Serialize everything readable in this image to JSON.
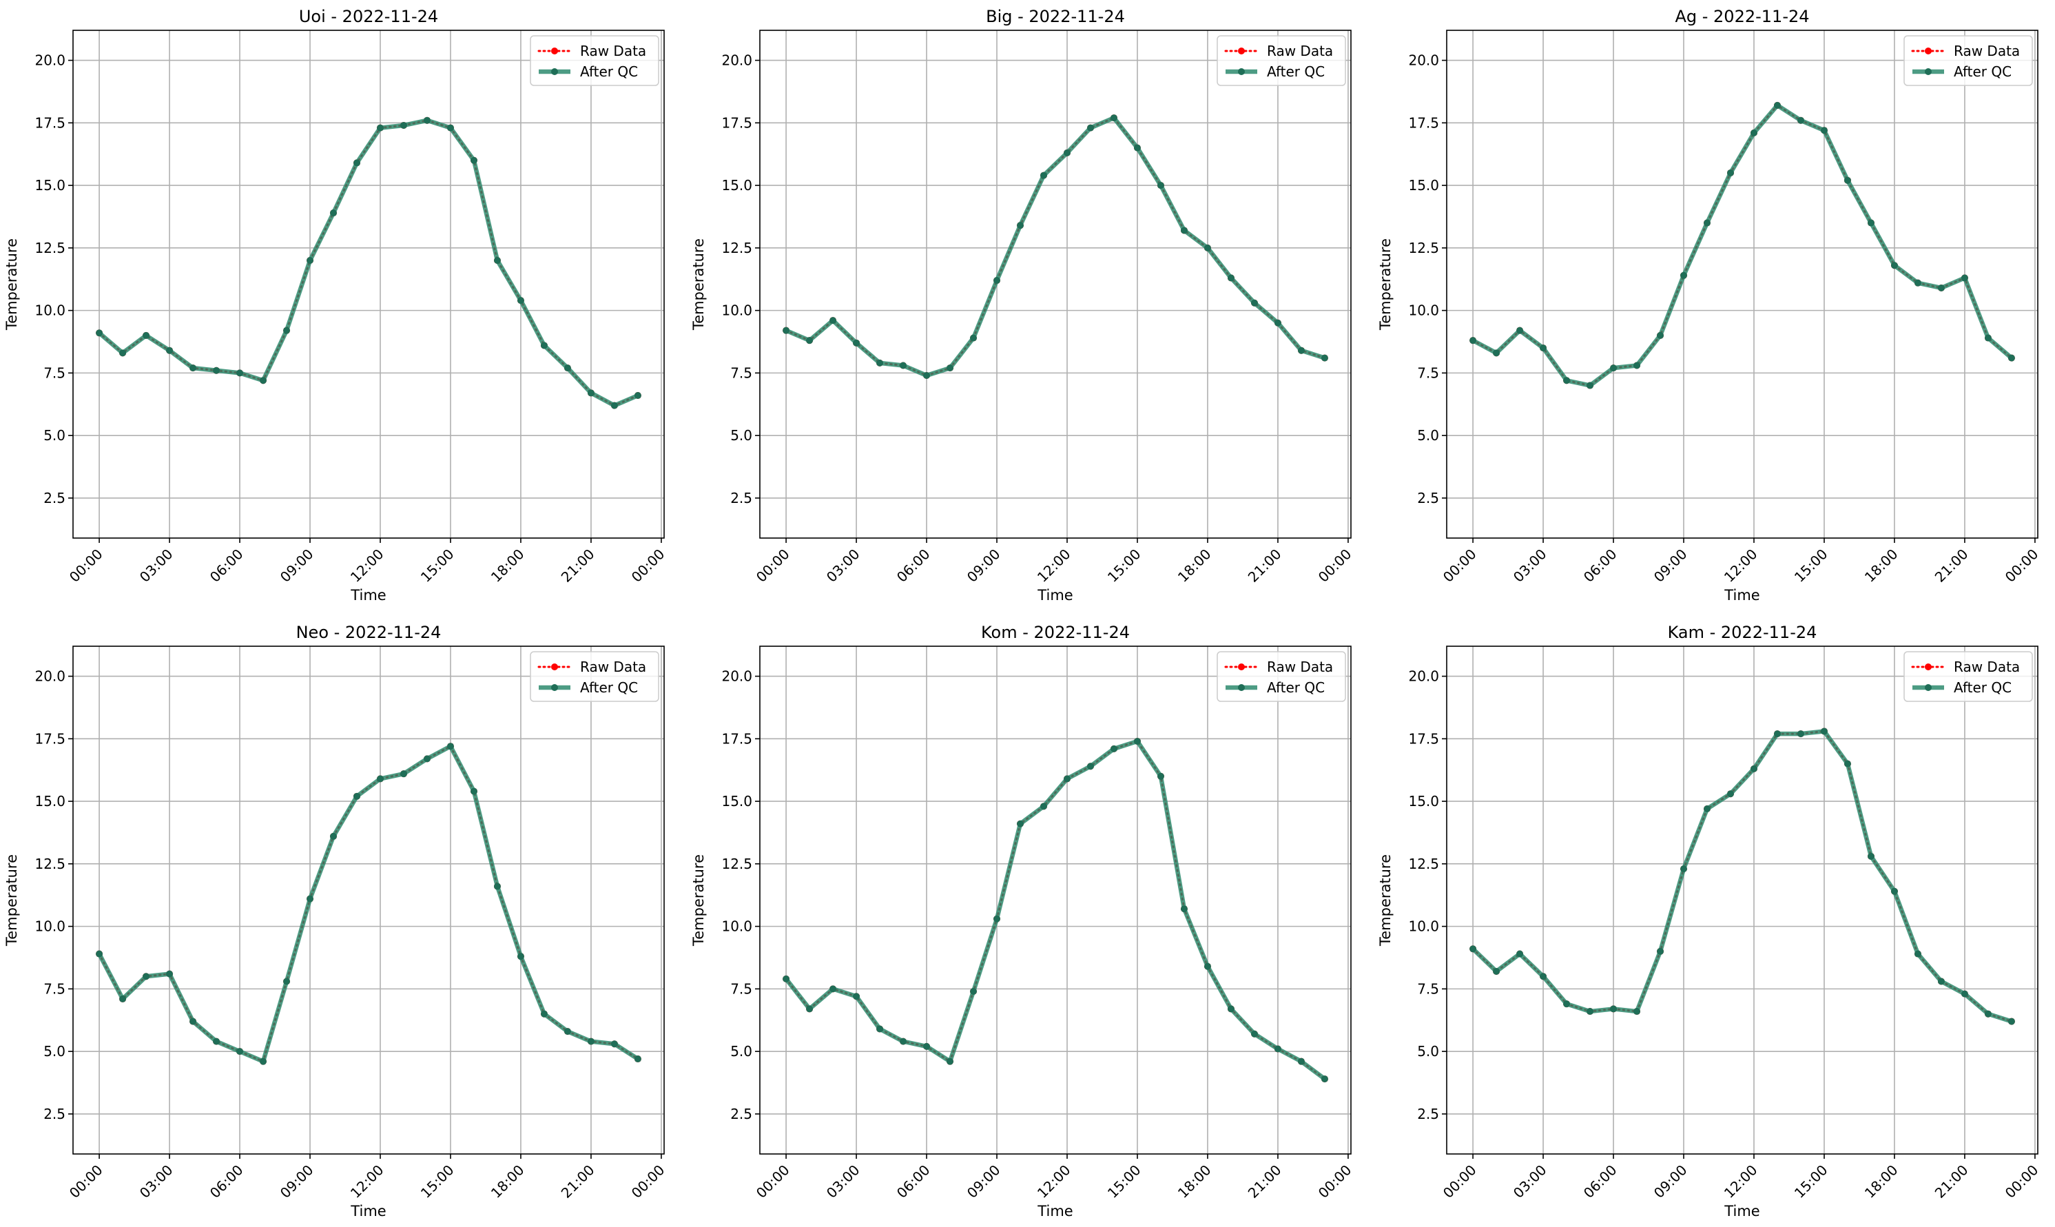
{
  "chart_data": [
    {
      "type": "line",
      "title": "Uoi - 2022-11-24",
      "xlabel": "Time",
      "ylabel": "Temperature",
      "xticks": [
        "00:00",
        "03:00",
        "06:00",
        "09:00",
        "12:00",
        "15:00",
        "18:00",
        "21:00",
        "00:00"
      ],
      "yticks": [
        "2.5",
        "5.0",
        "7.5",
        "10.0",
        "12.5",
        "15.0",
        "17.5",
        "20.0"
      ],
      "x_hours": [
        0,
        1,
        2,
        3,
        4,
        5,
        6,
        7,
        8,
        9,
        10,
        11,
        12,
        13,
        14,
        15,
        16,
        17,
        18,
        19,
        20,
        21,
        22,
        23
      ],
      "ylim": [
        0.9,
        21.2
      ],
      "grid": true,
      "legend_position": "upper right",
      "series": [
        {
          "name": "Raw Data",
          "color": "#ff0000",
          "style": "dotted",
          "marker": "circle",
          "values": [
            9.1,
            8.3,
            9.0,
            8.4,
            7.7,
            7.6,
            7.5,
            7.2,
            9.2,
            12.0,
            13.9,
            15.9,
            17.3,
            17.4,
            17.6,
            17.3,
            16.0,
            12.0,
            10.4,
            8.6,
            7.7,
            6.7,
            6.2,
            6.6
          ]
        },
        {
          "name": "After QC",
          "color": "#2e8b6e",
          "style": "solid",
          "marker": "circle",
          "values": [
            9.1,
            8.3,
            9.0,
            8.4,
            7.7,
            7.6,
            7.5,
            7.2,
            9.2,
            12.0,
            13.9,
            15.9,
            17.3,
            17.4,
            17.6,
            17.3,
            16.0,
            12.0,
            10.4,
            8.6,
            7.7,
            6.7,
            6.2,
            6.6
          ]
        }
      ]
    },
    {
      "type": "line",
      "title": "Big - 2022-11-24",
      "xlabel": "Time",
      "ylabel": "Temperature",
      "xticks": [
        "00:00",
        "03:00",
        "06:00",
        "09:00",
        "12:00",
        "15:00",
        "18:00",
        "21:00",
        "00:00"
      ],
      "yticks": [
        "2.5",
        "5.0",
        "7.5",
        "10.0",
        "12.5",
        "15.0",
        "17.5",
        "20.0"
      ],
      "x_hours": [
        0,
        1,
        2,
        3,
        4,
        5,
        6,
        7,
        8,
        9,
        10,
        11,
        12,
        13,
        14,
        15,
        16,
        17,
        18,
        19,
        20,
        21,
        22,
        23
      ],
      "ylim": [
        0.9,
        21.2
      ],
      "grid": true,
      "legend_position": "upper right",
      "series": [
        {
          "name": "Raw Data",
          "color": "#ff0000",
          "style": "dotted",
          "marker": "circle",
          "values": [
            9.2,
            8.8,
            9.6,
            8.7,
            7.9,
            7.8,
            7.4,
            7.7,
            8.9,
            11.2,
            13.4,
            15.4,
            16.3,
            17.3,
            17.7,
            16.5,
            15.0,
            13.2,
            12.5,
            11.3,
            10.3,
            9.5,
            8.4,
            8.1
          ]
        },
        {
          "name": "After QC",
          "color": "#2e8b6e",
          "style": "solid",
          "marker": "circle",
          "values": [
            9.2,
            8.8,
            9.6,
            8.7,
            7.9,
            7.8,
            7.4,
            7.7,
            8.9,
            11.2,
            13.4,
            15.4,
            16.3,
            17.3,
            17.7,
            16.5,
            15.0,
            13.2,
            12.5,
            11.3,
            10.3,
            9.5,
            8.4,
            8.1
          ]
        }
      ]
    },
    {
      "type": "line",
      "title": "Ag - 2022-11-24",
      "xlabel": "Time",
      "ylabel": "Temperature",
      "xticks": [
        "00:00",
        "03:00",
        "06:00",
        "09:00",
        "12:00",
        "15:00",
        "18:00",
        "21:00",
        "00:00"
      ],
      "yticks": [
        "2.5",
        "5.0",
        "7.5",
        "10.0",
        "12.5",
        "15.0",
        "17.5",
        "20.0"
      ],
      "x_hours": [
        0,
        1,
        2,
        3,
        4,
        5,
        6,
        7,
        8,
        9,
        10,
        11,
        12,
        13,
        14,
        15,
        16,
        17,
        18,
        19,
        20,
        21,
        22,
        23
      ],
      "ylim": [
        0.9,
        21.2
      ],
      "grid": true,
      "legend_position": "upper right",
      "series": [
        {
          "name": "Raw Data",
          "color": "#ff0000",
          "style": "dotted",
          "marker": "circle",
          "values": [
            8.8,
            8.3,
            9.2,
            8.5,
            7.2,
            7.0,
            7.7,
            7.8,
            9.0,
            11.4,
            13.5,
            15.5,
            17.1,
            18.2,
            17.6,
            17.2,
            15.2,
            13.5,
            11.8,
            11.1,
            10.9,
            11.3,
            8.9,
            8.1
          ]
        },
        {
          "name": "After QC",
          "color": "#2e8b6e",
          "style": "solid",
          "marker": "circle",
          "values": [
            8.8,
            8.3,
            9.2,
            8.5,
            7.2,
            7.0,
            7.7,
            7.8,
            9.0,
            11.4,
            13.5,
            15.5,
            17.1,
            18.2,
            17.6,
            17.2,
            15.2,
            13.5,
            11.8,
            11.1,
            10.9,
            11.3,
            8.9,
            8.1
          ]
        }
      ]
    },
    {
      "type": "line",
      "title": "Neo - 2022-11-24",
      "xlabel": "Time",
      "ylabel": "Temperature",
      "xticks": [
        "00:00",
        "03:00",
        "06:00",
        "09:00",
        "12:00",
        "15:00",
        "18:00",
        "21:00",
        "00:00"
      ],
      "yticks": [
        "2.5",
        "5.0",
        "7.5",
        "10.0",
        "12.5",
        "15.0",
        "17.5",
        "20.0"
      ],
      "x_hours": [
        0,
        1,
        2,
        3,
        4,
        5,
        6,
        7,
        8,
        9,
        10,
        11,
        12,
        13,
        14,
        15,
        16,
        17,
        18,
        19,
        20,
        21,
        22,
        23
      ],
      "ylim": [
        0.9,
        21.2
      ],
      "grid": true,
      "legend_position": "upper right",
      "series": [
        {
          "name": "Raw Data",
          "color": "#ff0000",
          "style": "dotted",
          "marker": "circle",
          "values": [
            8.9,
            7.1,
            8.0,
            8.1,
            6.2,
            5.4,
            5.0,
            4.6,
            7.8,
            11.1,
            13.6,
            15.2,
            15.9,
            16.1,
            16.7,
            17.2,
            15.4,
            11.6,
            8.8,
            6.5,
            5.8,
            5.4,
            5.3,
            4.7
          ]
        },
        {
          "name": "After QC",
          "color": "#2e8b6e",
          "style": "solid",
          "marker": "circle",
          "values": [
            8.9,
            7.1,
            8.0,
            8.1,
            6.2,
            5.4,
            5.0,
            4.6,
            7.8,
            11.1,
            13.6,
            15.2,
            15.9,
            16.1,
            16.7,
            17.2,
            15.4,
            11.6,
            8.8,
            6.5,
            5.8,
            5.4,
            5.3,
            4.7
          ]
        }
      ]
    },
    {
      "type": "line",
      "title": "Kom - 2022-11-24",
      "xlabel": "Time",
      "ylabel": "Temperature",
      "xticks": [
        "00:00",
        "03:00",
        "06:00",
        "09:00",
        "12:00",
        "15:00",
        "18:00",
        "21:00",
        "00:00"
      ],
      "yticks": [
        "2.5",
        "5.0",
        "7.5",
        "10.0",
        "12.5",
        "15.0",
        "17.5",
        "20.0"
      ],
      "x_hours": [
        0,
        1,
        2,
        3,
        4,
        5,
        6,
        7,
        8,
        9,
        10,
        11,
        12,
        13,
        14,
        15,
        16,
        17,
        18,
        19,
        20,
        21,
        22,
        23
      ],
      "ylim": [
        0.9,
        21.2
      ],
      "grid": true,
      "legend_position": "upper right",
      "series": [
        {
          "name": "Raw Data",
          "color": "#ff0000",
          "style": "dotted",
          "marker": "circle",
          "values": [
            7.9,
            6.7,
            7.5,
            7.2,
            5.9,
            5.4,
            5.2,
            4.6,
            7.4,
            10.3,
            14.1,
            14.8,
            15.9,
            16.4,
            17.1,
            17.4,
            16.0,
            10.7,
            8.4,
            6.7,
            5.7,
            5.1,
            4.6,
            3.9
          ]
        },
        {
          "name": "After QC",
          "color": "#2e8b6e",
          "style": "solid",
          "marker": "circle",
          "values": [
            7.9,
            6.7,
            7.5,
            7.2,
            5.9,
            5.4,
            5.2,
            4.6,
            7.4,
            10.3,
            14.1,
            14.8,
            15.9,
            16.4,
            17.1,
            17.4,
            16.0,
            10.7,
            8.4,
            6.7,
            5.7,
            5.1,
            4.6,
            3.9
          ]
        }
      ]
    },
    {
      "type": "line",
      "title": "Kam - 2022-11-24",
      "xlabel": "Time",
      "ylabel": "Temperature",
      "xticks": [
        "00:00",
        "03:00",
        "06:00",
        "09:00",
        "12:00",
        "15:00",
        "18:00",
        "21:00",
        "00:00"
      ],
      "yticks": [
        "2.5",
        "5.0",
        "7.5",
        "10.0",
        "12.5",
        "15.0",
        "17.5",
        "20.0"
      ],
      "x_hours": [
        0,
        1,
        2,
        3,
        4,
        5,
        6,
        7,
        8,
        9,
        10,
        11,
        12,
        13,
        14,
        15,
        16,
        17,
        18,
        19,
        20,
        21,
        22,
        23
      ],
      "ylim": [
        0.9,
        21.2
      ],
      "grid": true,
      "legend_position": "upper right",
      "series": [
        {
          "name": "Raw Data",
          "color": "#ff0000",
          "style": "dotted",
          "marker": "circle",
          "values": [
            9.1,
            8.2,
            8.9,
            8.0,
            6.9,
            6.6,
            6.7,
            6.6,
            9.0,
            12.3,
            14.7,
            15.3,
            16.3,
            17.7,
            17.7,
            17.8,
            16.5,
            12.8,
            11.4,
            8.9,
            7.8,
            7.3,
            6.5,
            6.2
          ]
        },
        {
          "name": "After QC",
          "color": "#2e8b6e",
          "style": "solid",
          "marker": "circle",
          "values": [
            9.1,
            8.2,
            8.9,
            8.0,
            6.9,
            6.6,
            6.7,
            6.6,
            9.0,
            12.3,
            14.7,
            15.3,
            16.3,
            17.7,
            17.7,
            17.8,
            16.5,
            12.8,
            11.4,
            8.9,
            7.8,
            7.3,
            6.5,
            6.2
          ]
        }
      ]
    }
  ]
}
